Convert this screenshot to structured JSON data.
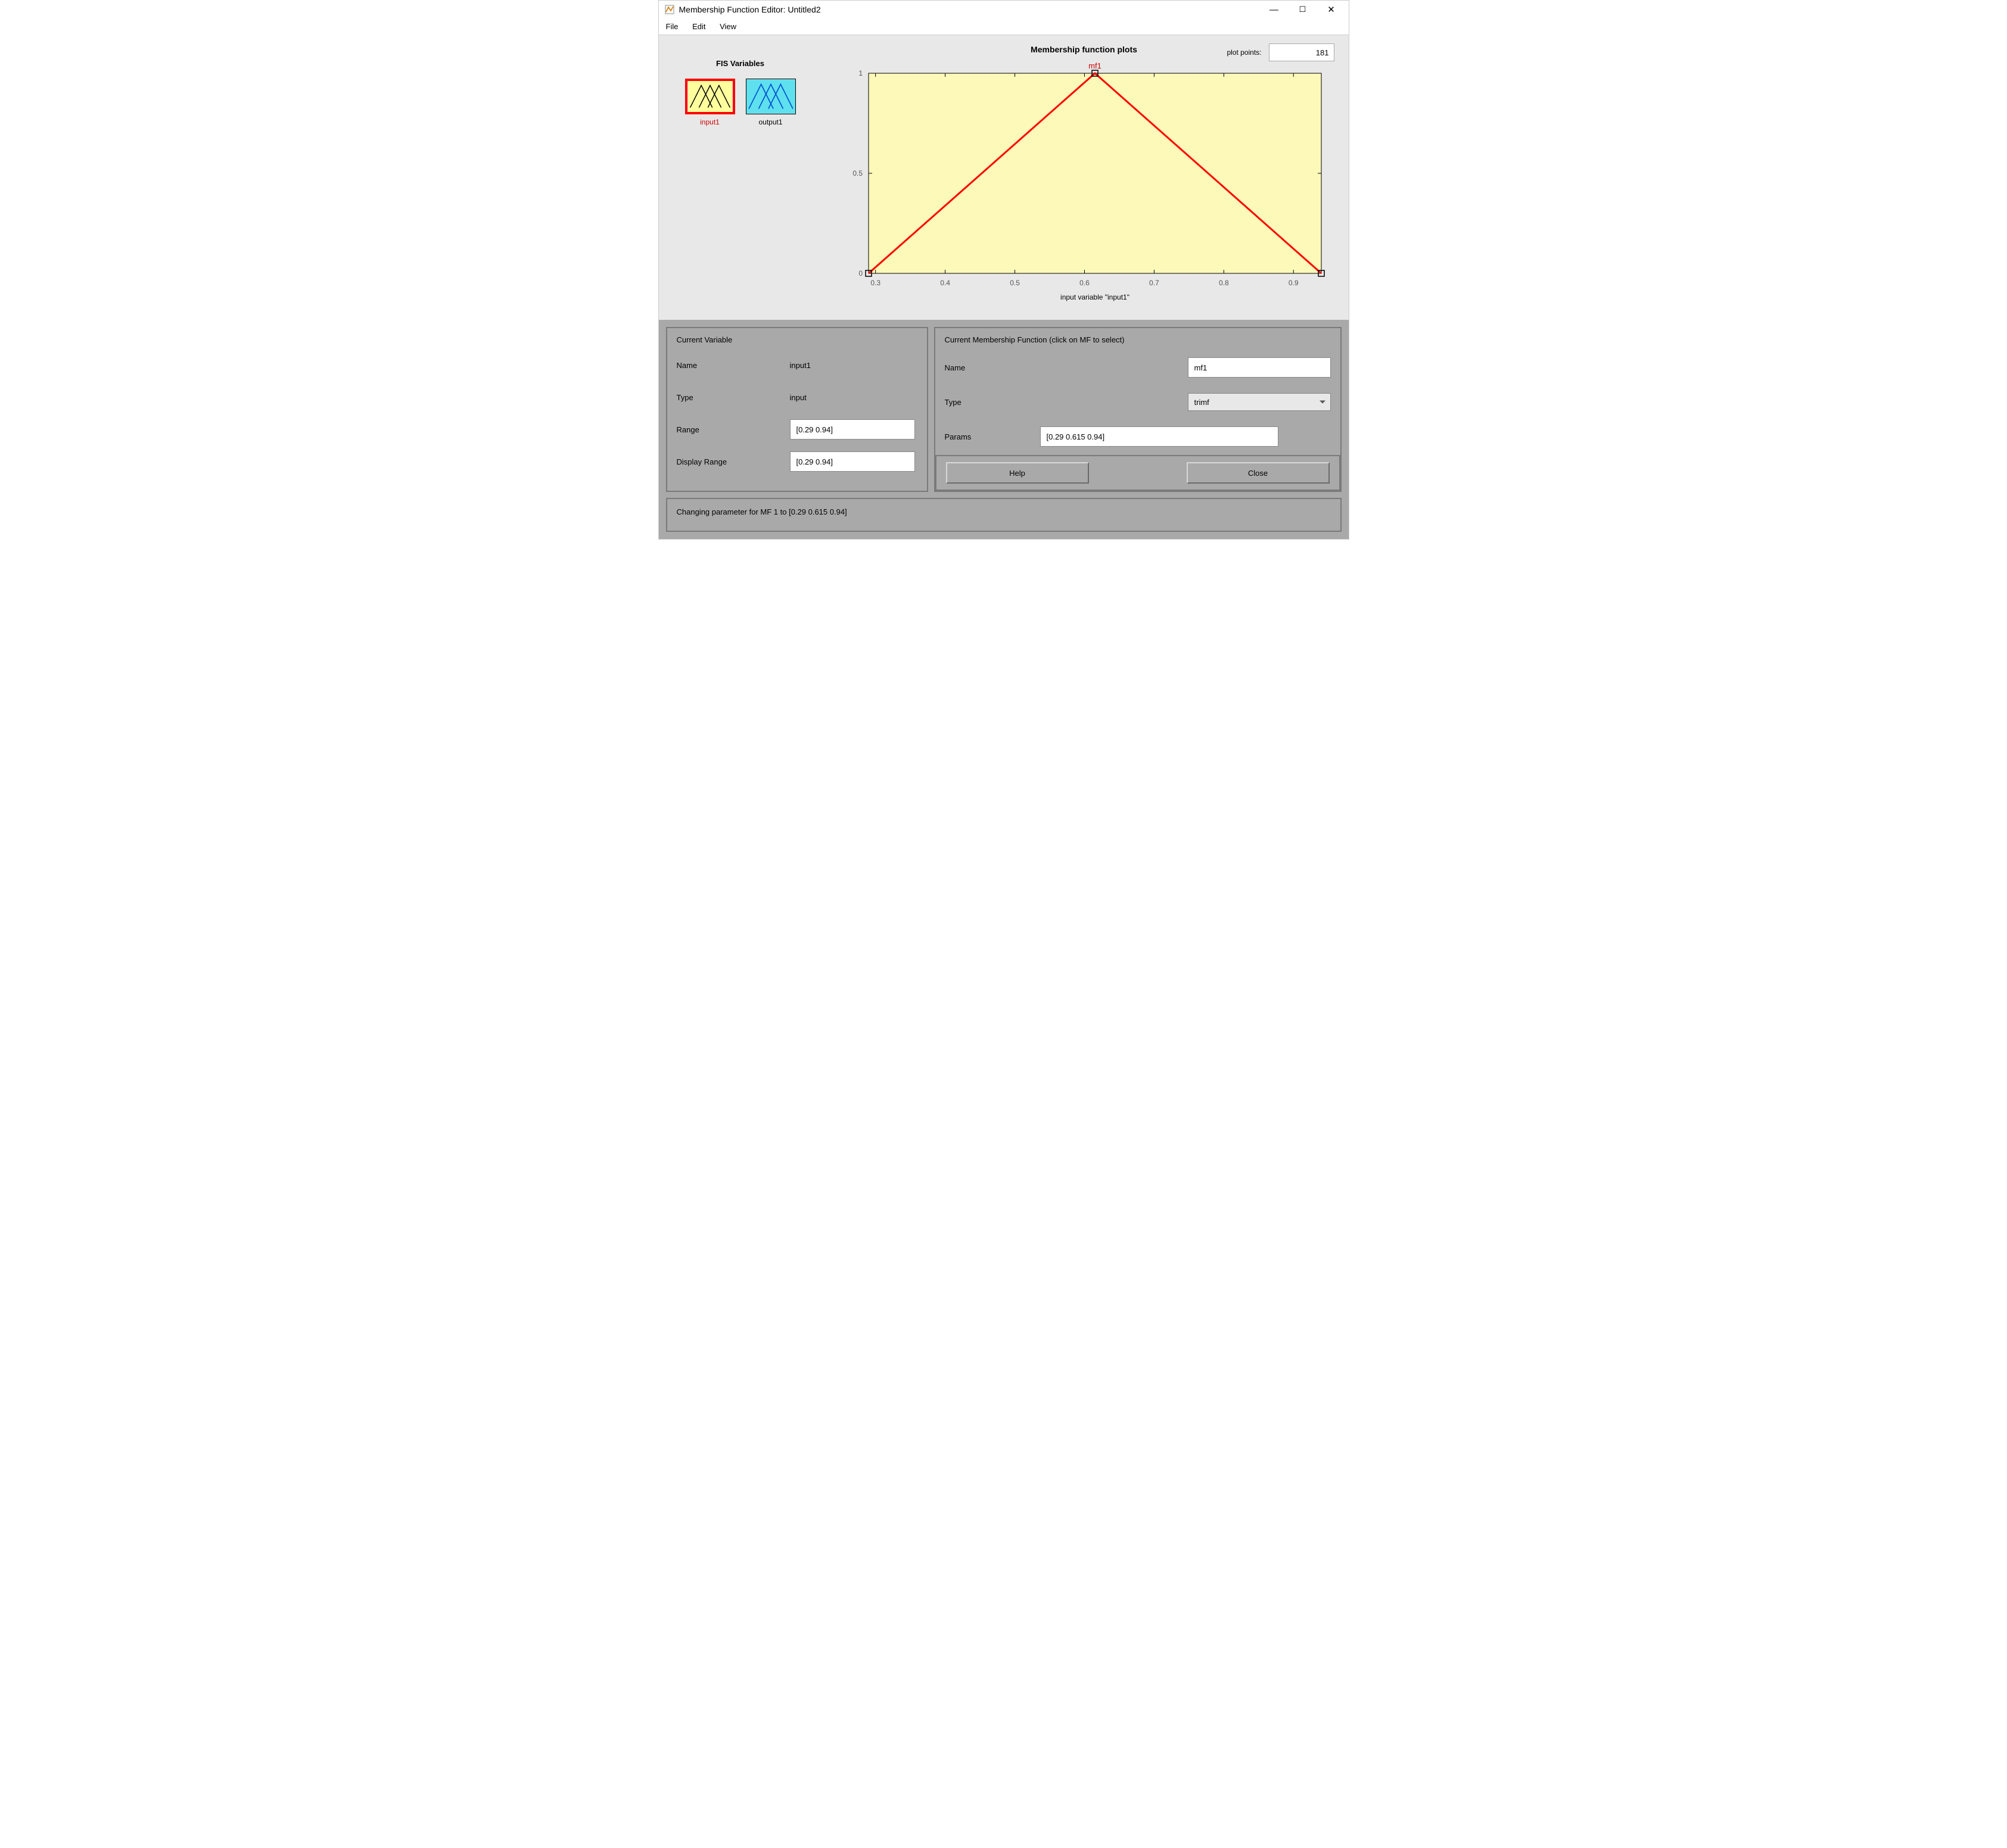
{
  "window": {
    "title": "Membership Function Editor: Untitled2"
  },
  "menu": {
    "file": "File",
    "edit": "Edit",
    "view": "View"
  },
  "plot_points": {
    "label": "plot points:",
    "value": "181"
  },
  "fis": {
    "title": "FIS Variables",
    "input_label": "input1",
    "output_label": "output1",
    "input_bg": "#ffff9e",
    "output_bg": "#5ee0ee",
    "input_stroke": "#000000",
    "output_stroke": "#0050d0",
    "selected_border": "#ff0000"
  },
  "chart": {
    "title": "Membership function plots",
    "type": "line",
    "xlabel": "input variable \"input1\"",
    "mf_label": "mf1",
    "mf_label_color": "#d00000",
    "plot_bg": "#fdf9b9",
    "axis_color": "#000000",
    "tick_color": "#000000",
    "line_color": "#ff0000",
    "marker_edge": "#000000",
    "line_width": 3,
    "xlim": [
      0.29,
      0.94
    ],
    "ylim": [
      0,
      1
    ],
    "xticks": [
      0.3,
      0.4,
      0.5,
      0.6,
      0.7,
      0.8,
      0.9
    ],
    "yticks": [
      0,
      0.5,
      1
    ],
    "series_x": [
      0.29,
      0.615,
      0.94
    ],
    "series_y": [
      0,
      1,
      0
    ],
    "label_fontsize": 12,
    "tick_fontsize": 12
  },
  "current_var": {
    "panel_title": "Current Variable",
    "name_label": "Name",
    "name_value": "input1",
    "type_label": "Type",
    "type_value": "input",
    "range_label": "Range",
    "range_value": "[0.29 0.94]",
    "drange_label": "Display Range",
    "drange_value": "[0.29 0.94]"
  },
  "current_mf": {
    "panel_title": "Current Membership Function (click on MF to select)",
    "name_label": "Name",
    "name_value": "mf1",
    "type_label": "Type",
    "type_value": "trimf",
    "params_label": "Params",
    "params_value": "[0.29 0.615 0.94]"
  },
  "buttons": {
    "help": "Help",
    "close": "Close"
  },
  "status": "Changing parameter for MF 1 to  [0.29 0.615 0.94]"
}
